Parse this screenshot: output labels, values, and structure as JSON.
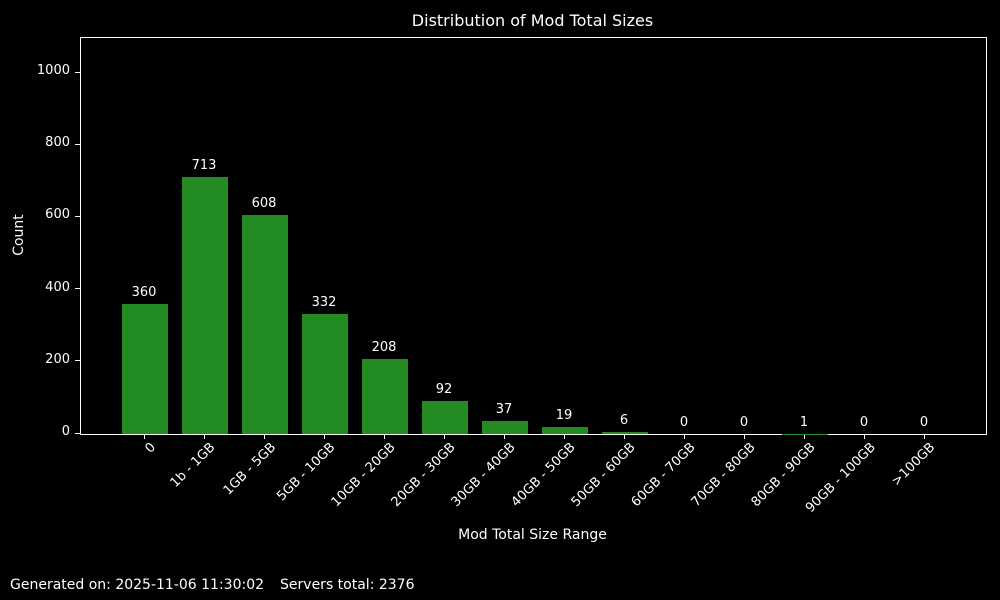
{
  "chart_data": {
    "type": "bar",
    "title": "Distribution of Mod Total Sizes",
    "xlabel": "Mod Total Size Range",
    "ylabel": "Count",
    "categories": [
      "0",
      "1b - 1GB",
      "1GB - 5GB",
      "5GB - 10GB",
      "10GB - 20GB",
      "20GB - 30GB",
      "30GB - 40GB",
      "40GB - 50GB",
      "50GB - 60GB",
      "60GB - 70GB",
      "70GB - 80GB",
      "80GB - 90GB",
      "90GB - 100GB",
      ">100GB"
    ],
    "values": [
      360,
      713,
      608,
      332,
      208,
      92,
      37,
      19,
      6,
      0,
      0,
      1,
      0,
      0
    ],
    "yticks": [
      0,
      200,
      400,
      600,
      800,
      1000
    ],
    "ylim": [
      0,
      1097
    ],
    "grid": false,
    "legend": null,
    "bar_color": "#228B22",
    "background_color": "#000000",
    "text_color": "#ffffff"
  },
  "footer": {
    "generated_on": "Generated on: 2025-11-06 11:30:02",
    "servers_total": "Servers total: 2376"
  }
}
